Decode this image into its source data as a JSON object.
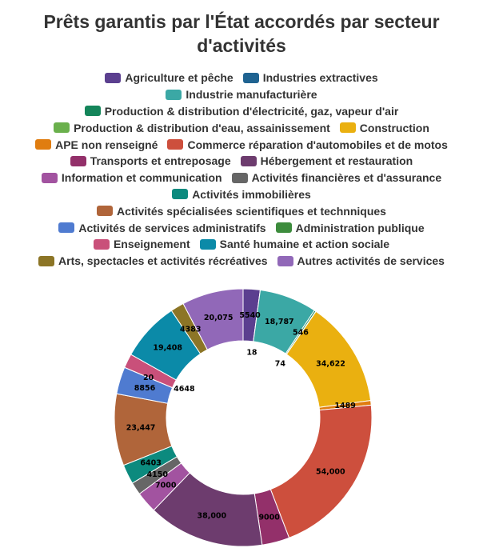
{
  "chart_data": {
    "type": "pie",
    "donut": true,
    "title": "Prêts garantis par l'État accordés par secteur d'activités",
    "legend_position": "top",
    "categories": [
      "Agriculture et pêche",
      "Industries extractives",
      "Industrie manufacturière",
      "Production & distribution d'électricité, gaz, vapeur d'air",
      "Production & distribution d'eau, assainissement",
      "Construction",
      "APE non renseigné",
      "Commerce réparation d'automobiles et de motos",
      "Transports et entreposage",
      "Hébergement et restauration",
      "Information et communication",
      "Activités financières et d'assurance",
      "Activités immobilières",
      "Activités spécialisées scientifiques et technniques",
      "Activités de services administratifs",
      "Administration publique",
      "Enseignement",
      "Santé humaine et action sociale",
      "Arts, spectacles et activités récréatives",
      "Autres activités de services"
    ],
    "values": [
      5540,
      18,
      18787,
      546,
      74,
      34622,
      1489,
      54000,
      9000,
      38000,
      7000,
      4150,
      6403,
      23447,
      8856,
      20,
      4648,
      19408,
      4383,
      20075
    ],
    "colors": [
      "#5b3f8f",
      "#1f6391",
      "#3ba8a5",
      "#14855a",
      "#6ab04c",
      "#eab010",
      "#e07d10",
      "#cd4f3d",
      "#93306a",
      "#6d3c6e",
      "#a253a0",
      "#666666",
      "#0c8a7e",
      "#b0653a",
      "#4f7bd0",
      "#3d8c3d",
      "#c9507a",
      "#0b8aa8",
      "#8c7526",
      "#9168b8"
    ]
  }
}
